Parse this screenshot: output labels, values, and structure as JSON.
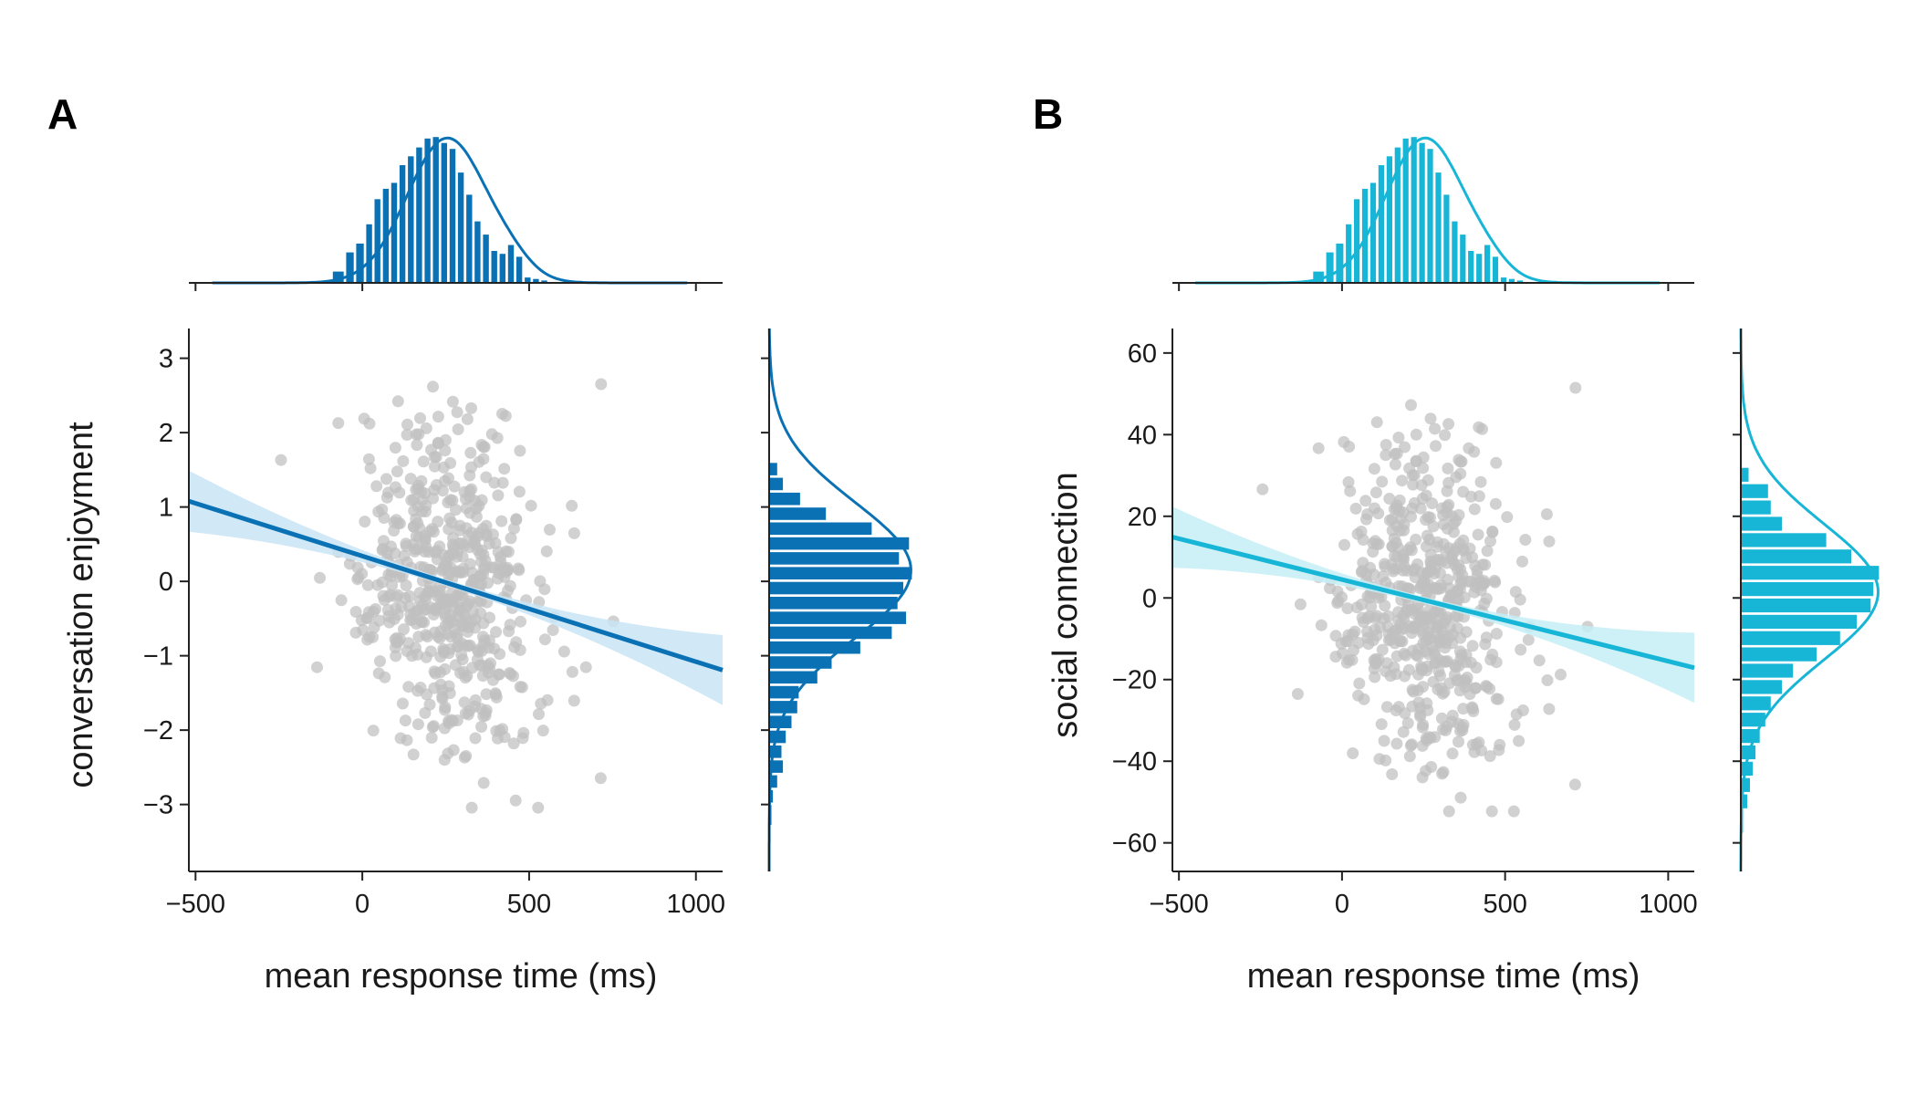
{
  "chart_data": [
    {
      "panel": "A",
      "type": "scatter",
      "title": "",
      "xlabel": "mean response time (ms)",
      "ylabel": "conversation enjoyment",
      "xlim": [
        -520,
        1080
      ],
      "ylim": [
        -3.9,
        3.4
      ],
      "xticks": [
        -500,
        0,
        500,
        1000
      ],
      "xtick_labels": [
        "−500",
        "0",
        "500",
        "1000"
      ],
      "yticks": [
        3,
        2,
        1,
        0,
        -1,
        -2,
        -3
      ],
      "ytick_labels": [
        "3",
        "2",
        "1",
        "0",
        "−1",
        "−2",
        "−3"
      ],
      "grid": false,
      "regression": {
        "intercept": 0.34,
        "slope": -0.00142,
        "x_range": [
          -520,
          1080
        ]
      },
      "marginal_x_hist": {
        "bins": [
          -90,
          -50,
          -20,
          10,
          35,
          60,
          85,
          110,
          135,
          160,
          185,
          210,
          235,
          260,
          285,
          310,
          335,
          360,
          385,
          410,
          435,
          460,
          485,
          510,
          535,
          560,
          590
        ],
        "heights": [
          0.08,
          0.21,
          0.27,
          0.4,
          0.57,
          0.64,
          0.68,
          0.8,
          0.86,
          0.92,
          0.98,
          0.99,
          0.95,
          0.91,
          0.75,
          0.6,
          0.42,
          0.33,
          0.22,
          0.2,
          0.26,
          0.18,
          0.04,
          0.03,
          0.02,
          0.01
        ]
      },
      "marginal_y_hist": {
        "bins": [
          -3.3,
          -3.0,
          -2.8,
          -2.6,
          -2.4,
          -2.2,
          -2.0,
          -1.8,
          -1.6,
          -1.4,
          -1.2,
          -1.0,
          -0.8,
          -0.6,
          -0.4,
          -0.2,
          0.0,
          0.2,
          0.4,
          0.6,
          0.8,
          1.0,
          1.2,
          1.4,
          1.6
        ],
        "heights": [
          0.02,
          0.03,
          0.06,
          0.1,
          0.09,
          0.12,
          0.16,
          0.2,
          0.21,
          0.34,
          0.44,
          0.64,
          0.86,
          0.96,
          0.9,
          0.94,
          1.0,
          0.91,
          0.98,
          0.72,
          0.4,
          0.22,
          0.1,
          0.06
        ]
      }
    },
    {
      "panel": "B",
      "type": "scatter",
      "title": "",
      "xlabel": "mean response time (ms)",
      "ylabel": "social connection",
      "xlim": [
        -520,
        1080
      ],
      "ylim": [
        -67,
        66
      ],
      "xticks": [
        -500,
        0,
        500,
        1000
      ],
      "xtick_labels": [
        "−500",
        "0",
        "500",
        "1000"
      ],
      "yticks": [
        60,
        40,
        20,
        0,
        -20,
        -40,
        -60
      ],
      "ytick_labels": [
        "60",
        "40",
        "20",
        "0",
        "−20",
        "−40",
        "−60"
      ],
      "grid": false,
      "regression": {
        "intercept": 4.5,
        "slope": -0.02,
        "x_range": [
          -520,
          1080
        ]
      },
      "marginal_x_hist": {
        "bins": [
          -90,
          -50,
          -20,
          10,
          35,
          60,
          85,
          110,
          135,
          160,
          185,
          210,
          235,
          260,
          285,
          310,
          335,
          360,
          385,
          410,
          435,
          460,
          485,
          510,
          535,
          560,
          590
        ],
        "heights": [
          0.08,
          0.21,
          0.27,
          0.4,
          0.57,
          0.64,
          0.68,
          0.8,
          0.86,
          0.92,
          0.98,
          0.99,
          0.95,
          0.91,
          0.75,
          0.6,
          0.42,
          0.33,
          0.22,
          0.2,
          0.26,
          0.18,
          0.04,
          0.03,
          0.02,
          0.01
        ]
      },
      "marginal_y_hist": {
        "bins": [
          -58,
          -52,
          -48,
          -44,
          -40,
          -36,
          -32,
          -28,
          -24,
          -20,
          -16,
          -12,
          -8,
          -4,
          0,
          4,
          8,
          12,
          16,
          20,
          24,
          28,
          32
        ],
        "heights": [
          0.02,
          0.05,
          0.07,
          0.09,
          0.11,
          0.14,
          0.18,
          0.22,
          0.3,
          0.38,
          0.55,
          0.72,
          0.84,
          0.94,
          0.96,
          1.0,
          0.8,
          0.62,
          0.3,
          0.22,
          0.2,
          0.06
        ]
      }
    }
  ],
  "panels": [
    {
      "label": "A",
      "color": "#0a72b4",
      "band_color": "#c9e4f5"
    },
    {
      "label": "B",
      "color": "#17b5d6",
      "band_color": "#c6eef6"
    }
  ],
  "scatter_color": "#bfbfbf"
}
